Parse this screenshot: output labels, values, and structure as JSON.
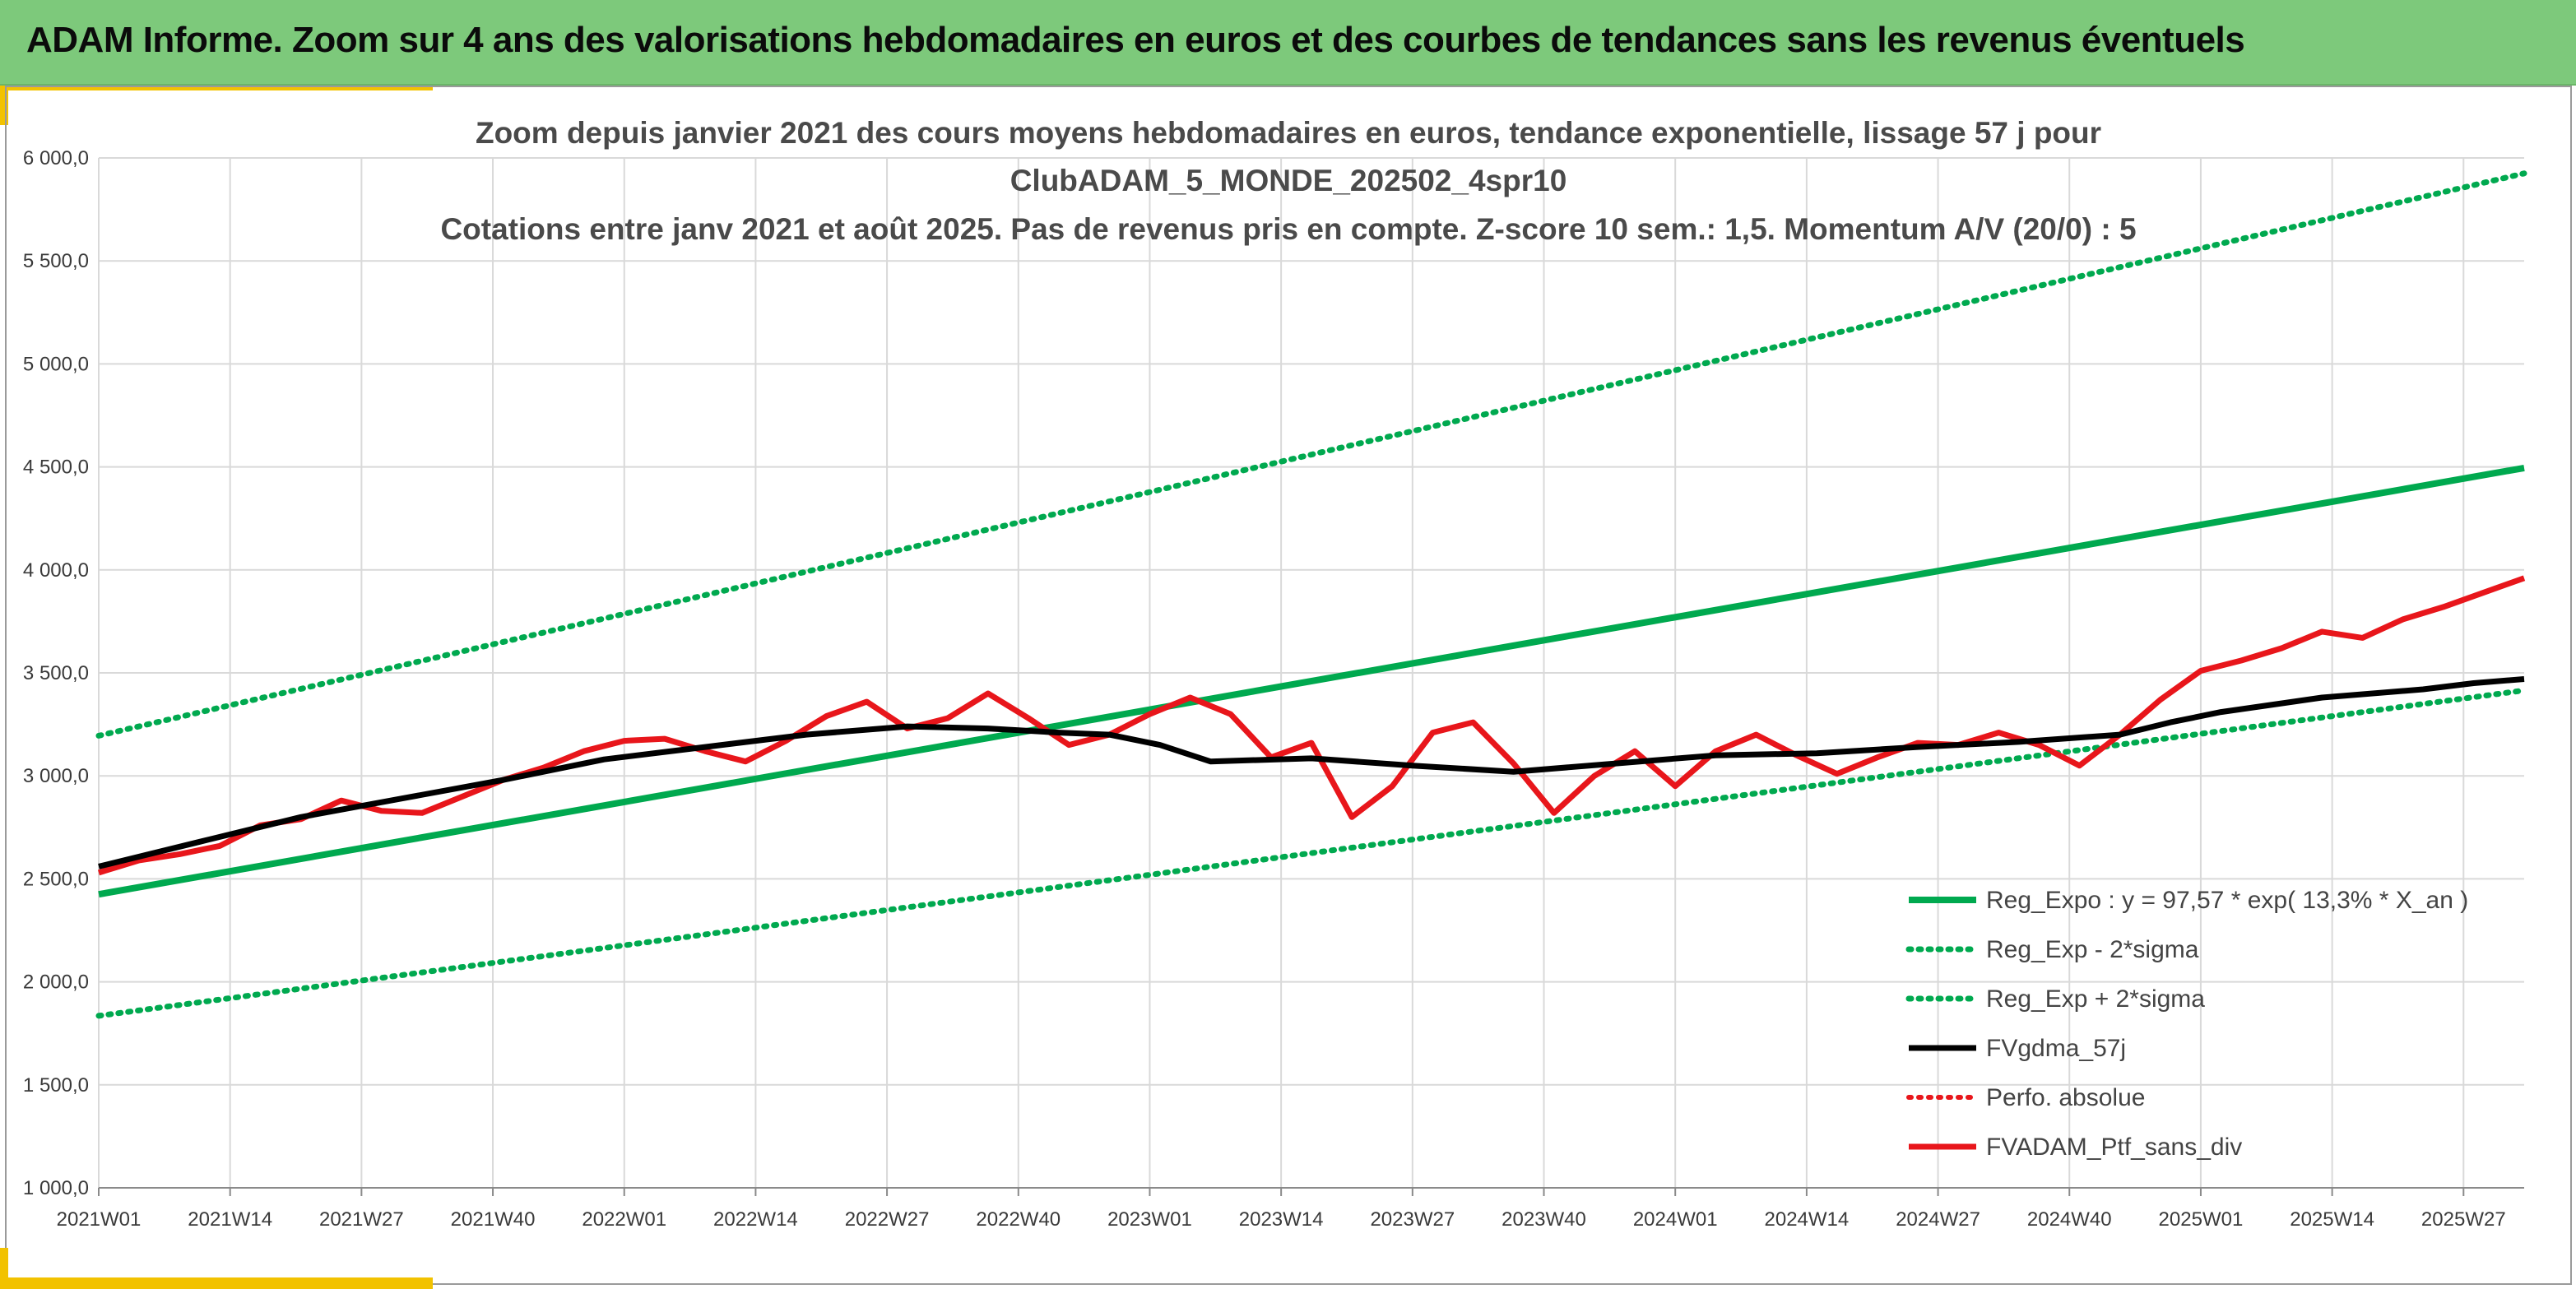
{
  "header": {
    "title": "ADAM Informe. Zoom sur 4 ans des valorisations hebdomadaires en euros et des courbes de tendances sans les revenus éventuels"
  },
  "colors": {
    "banner": "#7dc97b",
    "accent": "#f2c200",
    "trend": "#00a94f",
    "smooth": "#000000",
    "portfolio": "#e8161b"
  },
  "chart_data": {
    "type": "line",
    "title_lines": [
      "Zoom depuis janvier 2021 des cours moyens hebdomadaires en euros, tendance exponentielle, lissage 57 j pour",
      "ClubADAM_5_MONDE_202502_4spr10",
      "Cotations entre janv 2021 et août 2025. Pas de revenus pris en compte. Z-score 10 sem.: 1,5. Momentum A/V (20/0) : 5"
    ],
    "ylim": [
      1000,
      6000
    ],
    "y_ticks": [
      "1 000,0",
      "1 500,0",
      "2 000,0",
      "2 500,0",
      "3 000,0",
      "3 500,0",
      "4 000,0",
      "4 500,0",
      "5 000,0",
      "5 500,0",
      "6 000,0"
    ],
    "x_ticks": [
      "2021W01",
      "2021W14",
      "2021W27",
      "2021W40",
      "2022W01",
      "2022W14",
      "2022W27",
      "2022W40",
      "2023W01",
      "2023W14",
      "2023W27",
      "2023W40",
      "2024W01",
      "2024W14",
      "2024W27",
      "2024W40",
      "2025W01",
      "2025W14",
      "2025W27"
    ],
    "week_count": 241,
    "grid": true,
    "legend_position": "bottom-right",
    "series": [
      {
        "name": "Reg_Expo : y = 97,57 * exp( 13,3% *  X_an )",
        "style": "solid-green",
        "points": [
          [
            0,
            2425
          ],
          [
            240,
            4495
          ]
        ]
      },
      {
        "name": "Reg_Exp - 2*sigma",
        "style": "dotted-green",
        "points": [
          [
            0,
            1835
          ],
          [
            240,
            3415
          ]
        ]
      },
      {
        "name": "Reg_Exp + 2*sigma",
        "style": "dotted-green",
        "points": [
          [
            0,
            3195
          ],
          [
            240,
            5925
          ]
        ]
      },
      {
        "name": "FVgdma_57j",
        "style": "solid-black",
        "points": [
          [
            0,
            2560
          ],
          [
            10,
            2680
          ],
          [
            20,
            2800
          ],
          [
            30,
            2890
          ],
          [
            40,
            2980
          ],
          [
            50,
            3080
          ],
          [
            60,
            3140
          ],
          [
            70,
            3200
          ],
          [
            80,
            3240
          ],
          [
            88,
            3230
          ],
          [
            95,
            3210
          ],
          [
            100,
            3200
          ],
          [
            105,
            3150
          ],
          [
            110,
            3070
          ],
          [
            120,
            3085
          ],
          [
            130,
            3050
          ],
          [
            140,
            3020
          ],
          [
            150,
            3060
          ],
          [
            160,
            3100
          ],
          [
            170,
            3110
          ],
          [
            180,
            3140
          ],
          [
            190,
            3165
          ],
          [
            200,
            3200
          ],
          [
            205,
            3260
          ],
          [
            210,
            3310
          ],
          [
            220,
            3380
          ],
          [
            230,
            3420
          ],
          [
            235,
            3450
          ],
          [
            240,
            3470
          ]
        ]
      },
      {
        "name": "Perfo. absolue",
        "style": "dotted-red",
        "points": []
      },
      {
        "name": "FVADAM_Ptf_sans_div",
        "style": "solid-red",
        "points": [
          [
            0,
            2530
          ],
          [
            4,
            2590
          ],
          [
            8,
            2620
          ],
          [
            12,
            2660
          ],
          [
            16,
            2760
          ],
          [
            20,
            2790
          ],
          [
            24,
            2880
          ],
          [
            28,
            2830
          ],
          [
            32,
            2820
          ],
          [
            36,
            2900
          ],
          [
            40,
            2980
          ],
          [
            44,
            3040
          ],
          [
            48,
            3120
          ],
          [
            52,
            3170
          ],
          [
            56,
            3180
          ],
          [
            60,
            3120
          ],
          [
            64,
            3070
          ],
          [
            68,
            3170
          ],
          [
            72,
            3290
          ],
          [
            76,
            3360
          ],
          [
            80,
            3230
          ],
          [
            84,
            3280
          ],
          [
            88,
            3400
          ],
          [
            92,
            3280
          ],
          [
            96,
            3150
          ],
          [
            100,
            3200
          ],
          [
            104,
            3300
          ],
          [
            108,
            3380
          ],
          [
            112,
            3300
          ],
          [
            116,
            3090
          ],
          [
            120,
            3160
          ],
          [
            124,
            2800
          ],
          [
            128,
            2950
          ],
          [
            132,
            3210
          ],
          [
            136,
            3260
          ],
          [
            140,
            3060
          ],
          [
            144,
            2820
          ],
          [
            148,
            3000
          ],
          [
            152,
            3120
          ],
          [
            156,
            2950
          ],
          [
            160,
            3120
          ],
          [
            164,
            3200
          ],
          [
            168,
            3100
          ],
          [
            172,
            3010
          ],
          [
            176,
            3090
          ],
          [
            180,
            3160
          ],
          [
            184,
            3150
          ],
          [
            188,
            3210
          ],
          [
            192,
            3150
          ],
          [
            196,
            3050
          ],
          [
            200,
            3200
          ],
          [
            204,
            3370
          ],
          [
            208,
            3510
          ],
          [
            212,
            3560
          ],
          [
            216,
            3620
          ],
          [
            220,
            3700
          ],
          [
            224,
            3670
          ],
          [
            228,
            3760
          ],
          [
            232,
            3820
          ],
          [
            236,
            3890
          ],
          [
            240,
            3960
          ]
        ]
      }
    ]
  }
}
